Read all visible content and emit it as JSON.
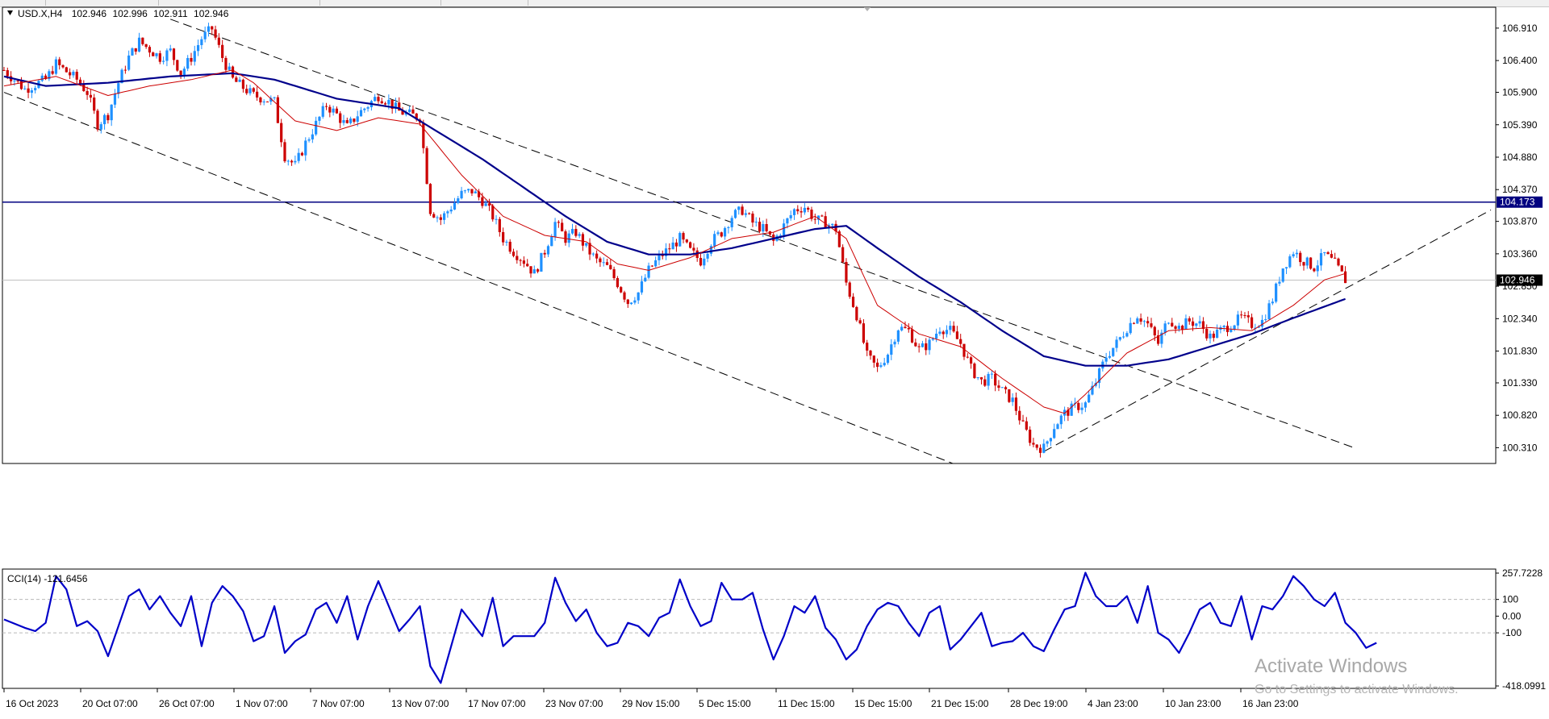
{
  "chart_data": {
    "type": "candlestick",
    "symbol_line": {
      "symbol": "USD.X,H4",
      "open": "102.946",
      "high": "102.996",
      "low": "102.911",
      "close": "102.946"
    },
    "price_axis": {
      "ticks": [
        "106.910",
        "106.400",
        "105.900",
        "105.390",
        "104.880",
        "104.370",
        "103.870",
        "103.360",
        "102.850",
        "102.340",
        "101.830",
        "101.330",
        "100.820",
        "100.310"
      ],
      "ylim": [
        100.1,
        107.2
      ]
    },
    "horizontal_line": {
      "value": 104.173,
      "label": "104.173",
      "color": "#000080"
    },
    "current_price": {
      "value": 102.946,
      "label": "102.946"
    },
    "time_axis": {
      "labels": [
        "16 Oct 2023",
        "20 Oct 07:00",
        "26 Oct 07:00",
        "1 Nov 07:00",
        "7 Nov 07:00",
        "13 Nov 07:00",
        "17 Nov 07:00",
        "23 Nov 07:00",
        "29 Nov 15:00",
        "5 Dec 15:00",
        "11 Dec 15:00",
        "15 Dec 15:00",
        "21 Dec 15:00",
        "28 Dec 19:00",
        "4 Jan 23:00",
        "10 Jan 23:00",
        "16 Jan 23:00"
      ]
    },
    "bull_color": "#1e90ff",
    "bear_color": "#cc0000",
    "ma_fast_color": "#cc0000",
    "ma_slow_color": "#00008b",
    "candles_close_path": [
      [
        0,
        106.25
      ],
      [
        2,
        105.95
      ],
      [
        4,
        106.1
      ],
      [
        5,
        106.35
      ],
      [
        7,
        106.1
      ],
      [
        8,
        105.9
      ],
      [
        9,
        105.4
      ],
      [
        10,
        105.55
      ],
      [
        11,
        106.05
      ],
      [
        12,
        106.45
      ],
      [
        13,
        106.7
      ],
      [
        15,
        106.45
      ],
      [
        16,
        106.55
      ],
      [
        17,
        106.2
      ],
      [
        18,
        106.45
      ],
      [
        19,
        106.75
      ],
      [
        20,
        106.9
      ],
      [
        21,
        106.45
      ],
      [
        22,
        106.1
      ],
      [
        24,
        105.85
      ],
      [
        26,
        105.75
      ],
      [
        27,
        104.9
      ],
      [
        28,
        104.75
      ],
      [
        29,
        105.1
      ],
      [
        30,
        105.4
      ],
      [
        31,
        105.7
      ],
      [
        32,
        105.55
      ],
      [
        33,
        105.35
      ],
      [
        34,
        105.55
      ],
      [
        36,
        105.85
      ],
      [
        37,
        105.75
      ],
      [
        38,
        105.6
      ],
      [
        39,
        105.55
      ],
      [
        40,
        105.5
      ],
      [
        41,
        104.05
      ],
      [
        42,
        103.9
      ],
      [
        43,
        104.1
      ],
      [
        44,
        104.3
      ],
      [
        45,
        104.35
      ],
      [
        46,
        104.2
      ],
      [
        47,
        103.95
      ],
      [
        48,
        103.6
      ],
      [
        49,
        103.4
      ],
      [
        50,
        103.25
      ],
      [
        51,
        103.05
      ],
      [
        52,
        103.4
      ],
      [
        53,
        103.85
      ],
      [
        54,
        103.6
      ],
      [
        55,
        103.7
      ],
      [
        56,
        103.45
      ],
      [
        57,
        103.25
      ],
      [
        58,
        103.15
      ],
      [
        59,
        102.9
      ],
      [
        60,
        102.6
      ],
      [
        61,
        102.75
      ],
      [
        62,
        103.1
      ],
      [
        63,
        103.3
      ],
      [
        64,
        103.45
      ],
      [
        65,
        103.6
      ],
      [
        66,
        103.4
      ],
      [
        67,
        103.25
      ],
      [
        68,
        103.55
      ],
      [
        69,
        103.7
      ],
      [
        70,
        103.95
      ],
      [
        71,
        104.05
      ],
      [
        72,
        103.85
      ],
      [
        73,
        103.75
      ],
      [
        74,
        103.55
      ],
      [
        75,
        103.8
      ],
      [
        76,
        104.05
      ],
      [
        77,
        104.1
      ],
      [
        78,
        103.9
      ],
      [
        79,
        103.85
      ],
      [
        80,
        103.75
      ],
      [
        81,
        102.9
      ],
      [
        82,
        102.4
      ],
      [
        83,
        101.75
      ],
      [
        84,
        101.55
      ],
      [
        85,
        101.8
      ],
      [
        86,
        102.2
      ],
      [
        87,
        102.15
      ],
      [
        88,
        101.85
      ],
      [
        89,
        101.95
      ],
      [
        90,
        102.2
      ],
      [
        91,
        102.15
      ],
      [
        92,
        101.95
      ],
      [
        93,
        101.55
      ],
      [
        94,
        101.35
      ],
      [
        95,
        101.4
      ],
      [
        96,
        101.2
      ],
      [
        97,
        101.05
      ],
      [
        98,
        100.65
      ],
      [
        99,
        100.35
      ],
      [
        100,
        100.3
      ],
      [
        101,
        100.65
      ],
      [
        102,
        100.85
      ],
      [
        103,
        100.95
      ],
      [
        104,
        101.0
      ],
      [
        105,
        101.35
      ],
      [
        106,
        101.75
      ],
      [
        107,
        101.95
      ],
      [
        108,
        102.2
      ],
      [
        109,
        102.4
      ],
      [
        110,
        102.25
      ],
      [
        111,
        101.95
      ],
      [
        112,
        102.35
      ],
      [
        113,
        102.2
      ],
      [
        114,
        102.3
      ],
      [
        115,
        102.25
      ],
      [
        116,
        102.05
      ],
      [
        117,
        102.15
      ],
      [
        118,
        102.25
      ],
      [
        119,
        102.35
      ],
      [
        120,
        102.25
      ],
      [
        121,
        102.3
      ],
      [
        122,
        102.65
      ],
      [
        123,
        103.15
      ],
      [
        124,
        103.4
      ],
      [
        125,
        103.25
      ],
      [
        126,
        103.15
      ],
      [
        127,
        103.35
      ],
      [
        128,
        103.2
      ],
      [
        129,
        102.95
      ]
    ],
    "ma_fast_path": [
      [
        0,
        106.0
      ],
      [
        5,
        106.15
      ],
      [
        10,
        105.85
      ],
      [
        14,
        106.0
      ],
      [
        18,
        106.1
      ],
      [
        22,
        106.25
      ],
      [
        24,
        106.05
      ],
      [
        28,
        105.45
      ],
      [
        32,
        105.3
      ],
      [
        36,
        105.5
      ],
      [
        40,
        105.4
      ],
      [
        44,
        104.6
      ],
      [
        48,
        103.95
      ],
      [
        52,
        103.65
      ],
      [
        56,
        103.55
      ],
      [
        59,
        103.2
      ],
      [
        62,
        103.1
      ],
      [
        66,
        103.3
      ],
      [
        70,
        103.6
      ],
      [
        74,
        103.7
      ],
      [
        78,
        103.95
      ],
      [
        81,
        103.6
      ],
      [
        84,
        102.55
      ],
      [
        88,
        102.1
      ],
      [
        92,
        101.9
      ],
      [
        96,
        101.4
      ],
      [
        100,
        100.95
      ],
      [
        102,
        100.85
      ],
      [
        104,
        101.15
      ],
      [
        108,
        101.8
      ],
      [
        112,
        102.15
      ],
      [
        116,
        102.2
      ],
      [
        120,
        102.15
      ],
      [
        124,
        102.55
      ],
      [
        127,
        102.95
      ],
      [
        129,
        103.05
      ]
    ],
    "ma_slow_path": [
      [
        0,
        106.15
      ],
      [
        4,
        106.0
      ],
      [
        10,
        106.05
      ],
      [
        16,
        106.15
      ],
      [
        22,
        106.2
      ],
      [
        26,
        106.1
      ],
      [
        32,
        105.8
      ],
      [
        38,
        105.65
      ],
      [
        42,
        105.25
      ],
      [
        46,
        104.85
      ],
      [
        50,
        104.4
      ],
      [
        54,
        103.95
      ],
      [
        58,
        103.55
      ],
      [
        62,
        103.35
      ],
      [
        66,
        103.35
      ],
      [
        70,
        103.45
      ],
      [
        74,
        103.6
      ],
      [
        78,
        103.75
      ],
      [
        81,
        103.8
      ],
      [
        84,
        103.45
      ],
      [
        88,
        103.0
      ],
      [
        92,
        102.6
      ],
      [
        96,
        102.15
      ],
      [
        100,
        101.75
      ],
      [
        104,
        101.6
      ],
      [
        108,
        101.6
      ],
      [
        112,
        101.7
      ],
      [
        116,
        101.9
      ],
      [
        120,
        102.1
      ],
      [
        124,
        102.35
      ],
      [
        129,
        102.65
      ]
    ],
    "channel_lines": [
      {
        "from": [
          0,
          105.9
        ],
        "to": [
          93,
          99.95
        ]
      },
      {
        "from": [
          16,
          107.05
        ],
        "to": [
          130,
          100.3
        ]
      },
      {
        "from": [
          100,
          100.25
        ],
        "to": [
          143,
          104.05
        ]
      }
    ],
    "cci_panel": {
      "label": "CCI(14) -121.6456",
      "axis_labels": [
        "257.7228",
        "100",
        "0.00",
        "-100",
        "-418.0991"
      ],
      "levels": [
        100,
        -100
      ],
      "ylim": [
        -418.0991,
        257.7228
      ],
      "color": "#0000c8",
      "path": [
        [
          0,
          -20
        ],
        [
          2,
          -70
        ],
        [
          3,
          -90
        ],
        [
          4,
          -40
        ],
        [
          5,
          240
        ],
        [
          6,
          160
        ],
        [
          7,
          -60
        ],
        [
          8,
          -30
        ],
        [
          9,
          -90
        ],
        [
          10,
          -240
        ],
        [
          11,
          -60
        ],
        [
          12,
          120
        ],
        [
          13,
          160
        ],
        [
          14,
          40
        ],
        [
          15,
          120
        ],
        [
          16,
          20
        ],
        [
          17,
          -60
        ],
        [
          18,
          120
        ],
        [
          19,
          -180
        ],
        [
          20,
          80
        ],
        [
          21,
          180
        ],
        [
          22,
          120
        ],
        [
          23,
          30
        ],
        [
          24,
          -150
        ],
        [
          25,
          -120
        ],
        [
          26,
          60
        ],
        [
          27,
          -220
        ],
        [
          28,
          -150
        ],
        [
          29,
          -110
        ],
        [
          30,
          40
        ],
        [
          31,
          80
        ],
        [
          32,
          -40
        ],
        [
          33,
          120
        ],
        [
          34,
          -140
        ],
        [
          35,
          60
        ],
        [
          36,
          210
        ],
        [
          37,
          60
        ],
        [
          38,
          -90
        ],
        [
          39,
          -20
        ],
        [
          40,
          60
        ],
        [
          41,
          -300
        ],
        [
          42,
          -400
        ],
        [
          43,
          -180
        ],
        [
          44,
          40
        ],
        [
          45,
          -40
        ],
        [
          46,
          -120
        ],
        [
          47,
          110
        ],
        [
          48,
          -180
        ],
        [
          49,
          -120
        ],
        [
          50,
          -120
        ],
        [
          51,
          -120
        ],
        [
          52,
          -40
        ],
        [
          53,
          230
        ],
        [
          54,
          80
        ],
        [
          55,
          -30
        ],
        [
          56,
          40
        ],
        [
          57,
          -100
        ],
        [
          58,
          -180
        ],
        [
          59,
          -160
        ],
        [
          60,
          -40
        ],
        [
          61,
          -60
        ],
        [
          62,
          -120
        ],
        [
          63,
          -10
        ],
        [
          64,
          20
        ],
        [
          65,
          220
        ],
        [
          66,
          60
        ],
        [
          67,
          -60
        ],
        [
          68,
          -30
        ],
        [
          69,
          200
        ],
        [
          70,
          100
        ],
        [
          71,
          100
        ],
        [
          72,
          140
        ],
        [
          73,
          -80
        ],
        [
          74,
          -260
        ],
        [
          75,
          -120
        ],
        [
          76,
          60
        ],
        [
          77,
          20
        ],
        [
          78,
          120
        ],
        [
          79,
          -70
        ],
        [
          80,
          -140
        ],
        [
          81,
          -260
        ],
        [
          82,
          -200
        ],
        [
          83,
          -60
        ],
        [
          84,
          40
        ],
        [
          85,
          80
        ],
        [
          86,
          60
        ],
        [
          87,
          -40
        ],
        [
          88,
          -120
        ],
        [
          89,
          20
        ],
        [
          90,
          60
        ],
        [
          91,
          -200
        ],
        [
          92,
          -140
        ],
        [
          93,
          -60
        ],
        [
          94,
          20
        ],
        [
          95,
          -180
        ],
        [
          96,
          -160
        ],
        [
          97,
          -150
        ],
        [
          98,
          -100
        ],
        [
          99,
          -180
        ],
        [
          100,
          -210
        ],
        [
          101,
          -80
        ],
        [
          102,
          40
        ],
        [
          103,
          60
        ],
        [
          104,
          260
        ],
        [
          105,
          120
        ],
        [
          106,
          60
        ],
        [
          107,
          60
        ],
        [
          108,
          120
        ],
        [
          109,
          -40
        ],
        [
          110,
          180
        ],
        [
          111,
          -100
        ],
        [
          112,
          -140
        ],
        [
          113,
          -220
        ],
        [
          114,
          -100
        ],
        [
          115,
          40
        ],
        [
          116,
          80
        ],
        [
          117,
          -40
        ],
        [
          118,
          -60
        ],
        [
          119,
          120
        ],
        [
          120,
          -140
        ],
        [
          121,
          60
        ],
        [
          122,
          40
        ],
        [
          123,
          120
        ],
        [
          124,
          240
        ],
        [
          125,
          180
        ],
        [
          126,
          100
        ],
        [
          127,
          60
        ],
        [
          128,
          140
        ],
        [
          129,
          -40
        ],
        [
          130,
          -100
        ],
        [
          131,
          -190
        ],
        [
          132,
          -160
        ]
      ]
    },
    "watermark": {
      "line1": "Activate Windows",
      "line2": "Go to Settings to activate Windows."
    }
  }
}
